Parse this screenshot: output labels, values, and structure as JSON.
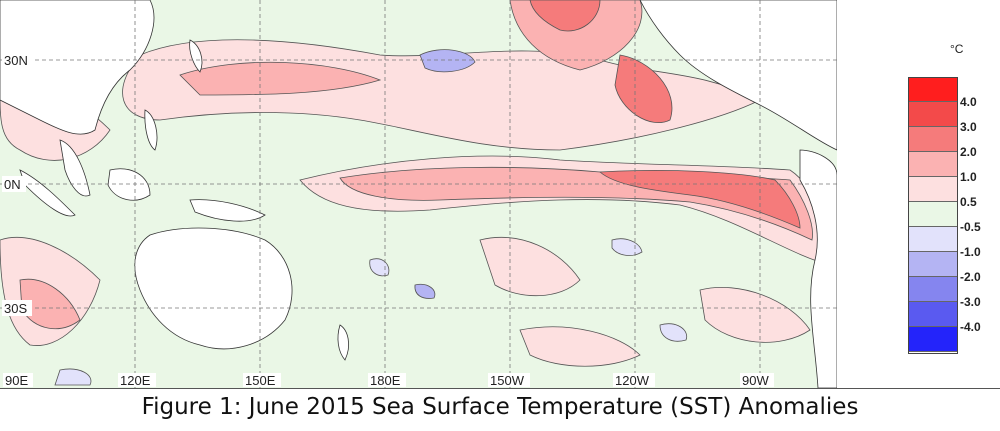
{
  "map": {
    "lat_labels": [
      {
        "text": "30N",
        "lat": 30
      },
      {
        "text": "0N",
        "lat": 0
      },
      {
        "text": "30S",
        "lat": -30
      }
    ],
    "lon_labels": [
      {
        "text": "90E",
        "lon": 90
      },
      {
        "text": "120E",
        "lon": 120
      },
      {
        "text": "150E",
        "lon": 150
      },
      {
        "text": "180E",
        "lon": 180
      },
      {
        "text": "150W",
        "lon": 210
      },
      {
        "text": "120W",
        "lon": 240
      },
      {
        "text": "90W",
        "lon": 270
      }
    ]
  },
  "legend": {
    "unit": "°C",
    "bins": [
      {
        "color": "#ff1e1e"
      },
      {
        "color": "#f34a4a"
      },
      {
        "color": "#f57b7b"
      },
      {
        "color": "#fbb2b2"
      },
      {
        "color": "#fde0e0"
      },
      {
        "color": "#eaf7e6"
      },
      {
        "color": "#e2e2fb"
      },
      {
        "color": "#b4b4f3"
      },
      {
        "color": "#8585ef"
      },
      {
        "color": "#5a5af0"
      },
      {
        "color": "#2424fa"
      }
    ],
    "tick_labels": [
      "4.0",
      "3.0",
      "2.0",
      "1.0",
      "0.5",
      "-0.5",
      "-1.0",
      "-2.0",
      "-3.0",
      "-4.0"
    ]
  },
  "colors": {
    "neutral_green": "#eaf7e6",
    "land": "#ffffff",
    "warm_1": "#fde0e0",
    "warm_2": "#fbb2b2",
    "warm_3": "#f57b7b",
    "cool_1": "#e2e2fb",
    "cool_2": "#b4b4f3"
  },
  "caption": "Figure 1: June 2015 Sea Surface Temperature (SST) Anomalies"
}
